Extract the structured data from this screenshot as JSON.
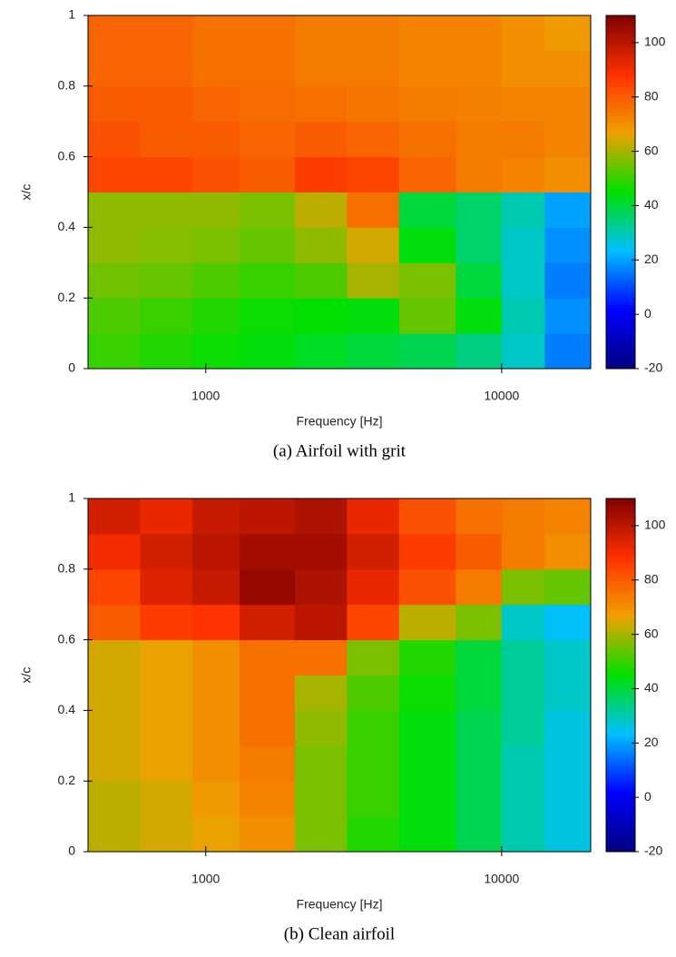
{
  "chart_data": [
    {
      "type": "heatmap",
      "caption": "(a)   Airfoil with grit",
      "xlabel": "Frequency [Hz]",
      "ylabel": "x/c",
      "xscale": "log",
      "xlim": [
        400,
        20000
      ],
      "xticks": [
        1000,
        10000
      ],
      "ylim": [
        0,
        1
      ],
      "yticks": [
        0,
        0.2,
        0.4,
        0.6,
        0.8,
        1
      ],
      "x_edges": [
        400,
        600,
        900,
        1300,
        2000,
        3000,
        4500,
        7000,
        10000,
        14000,
        20000
      ],
      "y_edges": [
        0,
        0.1,
        0.2,
        0.3,
        0.4,
        0.5,
        0.6,
        0.7,
        0.8,
        0.9,
        1
      ],
      "values": [
        [
          50,
          48,
          46,
          44,
          42,
          40,
          38,
          34,
          28,
          16
        ],
        [
          52,
          50,
          48,
          46,
          45,
          44,
          54,
          44,
          30,
          18
        ],
        [
          55,
          54,
          52,
          50,
          52,
          60,
          56,
          40,
          28,
          16
        ],
        [
          58,
          57,
          56,
          54,
          58,
          64,
          44,
          36,
          28,
          18
        ],
        [
          58,
          58,
          58,
          56,
          62,
          76,
          40,
          36,
          30,
          20
        ],
        [
          84,
          84,
          82,
          80,
          86,
          84,
          78,
          74,
          72,
          70
        ],
        [
          82,
          80,
          80,
          78,
          80,
          78,
          76,
          74,
          74,
          72
        ],
        [
          80,
          80,
          78,
          77,
          76,
          75,
          74,
          73,
          72,
          72
        ],
        [
          78,
          78,
          76,
          76,
          74,
          74,
          72,
          72,
          70,
          70
        ],
        [
          78,
          78,
          76,
          76,
          74,
          74,
          72,
          72,
          70,
          68
        ]
      ],
      "clim": [
        -20,
        110
      ],
      "cticks": [
        -20,
        0,
        20,
        40,
        60,
        80,
        100
      ],
      "colors": [
        "#00007f",
        "#0000ff",
        "#00bfff",
        "#00e000",
        "#f0a000",
        "#ff3000",
        "#7f0000"
      ]
    },
    {
      "type": "heatmap",
      "caption": "(b)   Clean airfoil",
      "xlabel": "Frequency [Hz]",
      "ylabel": "x/c",
      "xscale": "log",
      "xlim": [
        400,
        20000
      ],
      "xticks": [
        1000,
        10000
      ],
      "ylim": [
        0,
        1
      ],
      "yticks": [
        0,
        0.2,
        0.4,
        0.6,
        0.8,
        1
      ],
      "x_edges": [
        400,
        600,
        900,
        1300,
        2000,
        3000,
        4500,
        7000,
        10000,
        14000,
        20000
      ],
      "y_edges": [
        0,
        0.1,
        0.2,
        0.3,
        0.4,
        0.5,
        0.6,
        0.7,
        0.8,
        0.9,
        1
      ],
      "values": [
        [
          62,
          64,
          66,
          70,
          56,
          48,
          44,
          38,
          30,
          26
        ],
        [
          62,
          64,
          68,
          72,
          56,
          50,
          44,
          38,
          30,
          26
        ],
        [
          64,
          66,
          70,
          74,
          56,
          50,
          44,
          38,
          30,
          26
        ],
        [
          64,
          66,
          70,
          76,
          58,
          50,
          44,
          38,
          32,
          26
        ],
        [
          64,
          66,
          70,
          76,
          60,
          52,
          46,
          40,
          32,
          28
        ],
        [
          64,
          66,
          70,
          76,
          76,
          56,
          48,
          40,
          32,
          28
        ],
        [
          80,
          86,
          88,
          96,
          100,
          84,
          62,
          56,
          28,
          24
        ],
        [
          84,
          94,
          98,
          106,
          102,
          92,
          82,
          74,
          56,
          54
        ],
        [
          90,
          96,
          100,
          104,
          104,
          96,
          86,
          80,
          74,
          70
        ],
        [
          96,
          92,
          98,
          100,
          102,
          92,
          82,
          76,
          74,
          72
        ]
      ],
      "clim": [
        -20,
        110
      ],
      "cticks": [
        -20,
        0,
        20,
        40,
        60,
        80,
        100
      ],
      "colors": [
        "#00007f",
        "#0000ff",
        "#00bfff",
        "#00e000",
        "#f0a000",
        "#ff3000",
        "#7f0000"
      ]
    }
  ]
}
